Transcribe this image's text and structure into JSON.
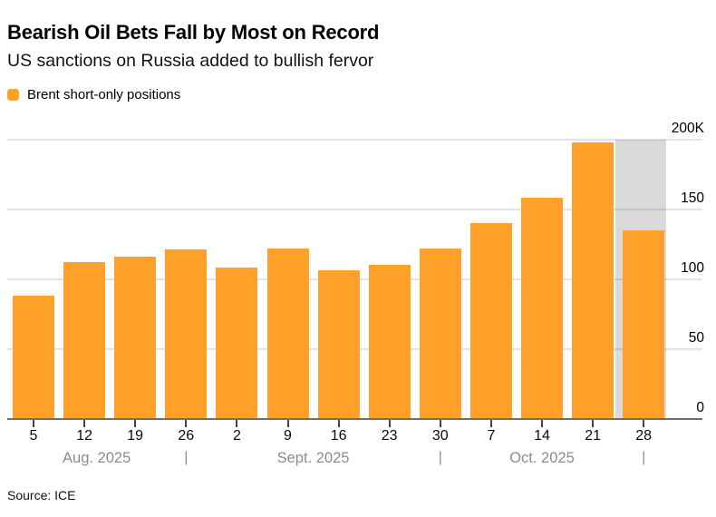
{
  "header": {
    "title": "Bearish Oil Bets Fall by Most on Record",
    "subtitle": "US sanctions on Russia added to bullish fervor"
  },
  "legend": {
    "label": "Brent short-only positions"
  },
  "footer": {
    "source": "Source: ICE"
  },
  "colors": {
    "bar": "#FFA028",
    "highlight_band": "#DADADA",
    "gridline": "rgba(25,25,25,0.12)",
    "baseline": "#6E6E6E",
    "tick": "#444444",
    "month_label": "#8C8C8C"
  },
  "chart_data": {
    "type": "bar",
    "title": "Bearish Oil Bets Fall by Most on Record",
    "subtitle": "US sanctions on Russia added to bullish fervor",
    "series_name": "Brent short-only positions",
    "unit": "K",
    "categories": [
      "5",
      "12",
      "19",
      "26",
      "2",
      "9",
      "16",
      "23",
      "30",
      "7",
      "14",
      "21",
      "28"
    ],
    "values": [
      88,
      112,
      116,
      121,
      108,
      122,
      106,
      110,
      122,
      140,
      158,
      198,
      135
    ],
    "month_groups": [
      {
        "label": "Aug. 2025",
        "end_index": 3
      },
      {
        "label": "Sept. 2025",
        "end_index": 8
      },
      {
        "label": "Oct. 2025",
        "end_index": 12
      }
    ],
    "highlighted_index": 12,
    "ylim": [
      0,
      200
    ],
    "ytick_values": [
      0,
      50,
      100,
      150,
      200
    ],
    "ytick_labels": [
      "0",
      "50",
      "100",
      "150",
      "200K"
    ],
    "y_axis_side": "right",
    "grid": "horizontal",
    "legend_position": "top-left",
    "xlabel": "",
    "ylabel": ""
  }
}
